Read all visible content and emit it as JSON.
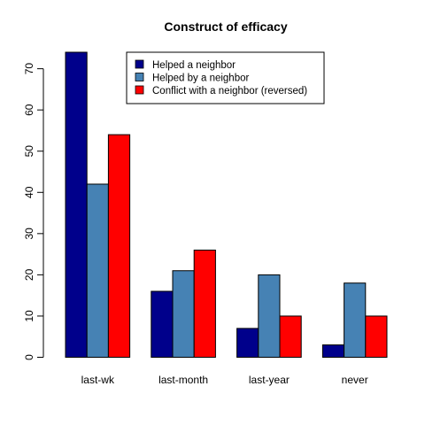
{
  "chart_data": {
    "type": "bar",
    "title": "Construct of efficacy",
    "xlabel": "",
    "ylabel": "",
    "categories": [
      "last-wk",
      "last-month",
      "last-year",
      "never"
    ],
    "series": [
      {
        "name": "Helped a neighbor",
        "color": "#00008B",
        "values": [
          74,
          16,
          7,
          3
        ]
      },
      {
        "name": "Helped by a neighbor",
        "color": "#4682B4",
        "values": [
          42,
          21,
          20,
          18
        ]
      },
      {
        "name": "Conflict with a neighbor (reversed)",
        "color": "#FF0000",
        "values": [
          54,
          26,
          10,
          10
        ]
      }
    ],
    "ylim": [
      0,
      74
    ],
    "yticks": [
      0,
      10,
      20,
      30,
      40,
      50,
      60,
      70
    ],
    "grid": false,
    "legend_position": "top-right",
    "layout": "grouped"
  }
}
